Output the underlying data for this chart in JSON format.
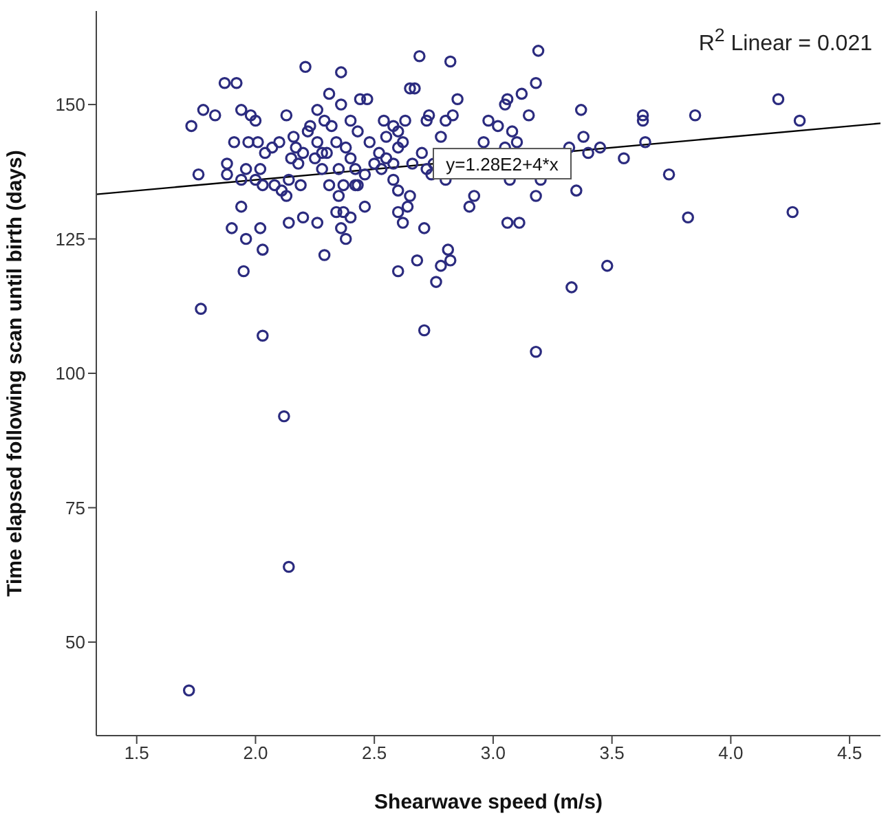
{
  "chart_data": {
    "type": "scatter",
    "xlabel": "Shearwave speed (m/s)",
    "ylabel": "Time elapsed following scan until birth (days)",
    "xlim": [
      1.33,
      4.63
    ],
    "ylim": [
      32.6,
      167.4
    ],
    "xticks": [
      1.5,
      {
        "value": 2,
        "label": "2.0"
      },
      2.5,
      {
        "value": 3,
        "label": "3.0"
      },
      3.5,
      {
        "value": 4,
        "label": "4.0"
      },
      4.5
    ],
    "yticks": [
      50,
      75,
      100,
      125,
      150
    ],
    "grid": false,
    "marker": "circle",
    "annotations": [
      "R$^{2}$ Linear = 0.021",
      {
        "text": "y=1.28E2+4*x",
        "x": 2.76,
        "y": 139
      }
    ],
    "series": [
      {
        "type": "scatter",
        "color": "#2b2b7f",
        "x": [
          1.72,
          2.14,
          2.12,
          2.03,
          1.77,
          2.71,
          3.18,
          3.33,
          3.48,
          4.26,
          3.82,
          3.74,
          2.76,
          2.78,
          2.81,
          2.82,
          2.6,
          1.95,
          4.2,
          4.29,
          3.85,
          3.63,
          3.63,
          3.64,
          3.55,
          3.45,
          3.37,
          3.38,
          3.35,
          3.19,
          3.18,
          3.12,
          3.06,
          3.05,
          3.15,
          3.08,
          3.1,
          3.05,
          3.02,
          2.98,
          2.96,
          2.85,
          2.82,
          2.83,
          2.8,
          2.78,
          2.73,
          2.72,
          2.69,
          2.67,
          2.65,
          2.63,
          2.62,
          2.6,
          2.6,
          2.58,
          2.55,
          2.55,
          2.53,
          2.58,
          2.6,
          2.62,
          2.6,
          2.65,
          2.64,
          2.68,
          2.71,
          2.75,
          2.74,
          2.8,
          2.9,
          2.92,
          3.07,
          3.06,
          3.11,
          3.2,
          3.18,
          3.32,
          3.4,
          1.73,
          1.78,
          1.76,
          1.83,
          1.87,
          1.92,
          1.88,
          1.88,
          1.91,
          1.94,
          1.98,
          2.0,
          1.97,
          2.01,
          2.04,
          2.07,
          2.1,
          2.13,
          2.16,
          2.17,
          2.15,
          2.18,
          2.21,
          2.23,
          2.26,
          2.29,
          2.32,
          2.31,
          2.36,
          2.36,
          2.4,
          2.44,
          2.47,
          2.43,
          2.4,
          2.38,
          2.34,
          2.28,
          2.25,
          2.2,
          2.22,
          2.26,
          2.3,
          2.35,
          2.42,
          2.46,
          2.5,
          2.37,
          2.43,
          2.52,
          1.94,
          1.96,
          2.0,
          2.02,
          2.03,
          2.08,
          2.11,
          2.14,
          2.13,
          2.19,
          2.28,
          2.31,
          2.35,
          2.34,
          2.37,
          2.4,
          1.94,
          1.9,
          1.96,
          2.02,
          2.03,
          2.14,
          2.2,
          2.26,
          2.29,
          2.36,
          2.38,
          2.42,
          2.46,
          2.48,
          2.54,
          2.58,
          2.66,
          2.7,
          2.72
        ],
        "values": [
          41,
          64,
          92,
          107,
          112,
          108,
          104,
          116,
          120,
          130,
          129,
          137,
          117,
          120,
          123,
          121,
          119,
          119,
          151,
          147,
          148,
          148,
          147,
          143,
          140,
          142,
          149,
          144,
          134,
          160,
          154,
          152,
          151,
          150,
          148,
          145,
          143,
          142,
          146,
          147,
          143,
          151,
          158,
          148,
          147,
          144,
          148,
          147,
          159,
          153,
          153,
          147,
          143,
          145,
          142,
          146,
          144,
          140,
          138,
          136,
          134,
          128,
          130,
          133,
          131,
          121,
          127,
          139,
          137,
          136,
          131,
          133,
          136,
          128,
          128,
          136,
          133,
          142,
          141,
          146,
          149,
          137,
          148,
          154,
          154,
          137,
          139,
          143,
          149,
          148,
          147,
          143,
          143,
          141,
          142,
          143,
          148,
          144,
          142,
          140,
          139,
          157,
          146,
          149,
          147,
          146,
          152,
          156,
          150,
          147,
          151,
          151,
          145,
          140,
          142,
          143,
          141,
          140,
          141,
          145,
          143,
          141,
          138,
          138,
          137,
          139,
          135,
          135,
          141,
          136,
          138,
          136,
          138,
          135,
          135,
          134,
          136,
          133,
          135,
          138,
          135,
          133,
          130,
          130,
          129,
          131,
          127,
          125,
          127,
          123,
          128,
          129,
          128,
          122,
          127,
          125,
          135,
          131,
          143,
          147,
          139,
          139,
          141,
          138
        ]
      },
      {
        "type": "line",
        "color": "#000000",
        "x": [
          1.33,
          4.63
        ],
        "values": [
          133.3,
          146.5
        ],
        "marker": "none"
      }
    ]
  }
}
